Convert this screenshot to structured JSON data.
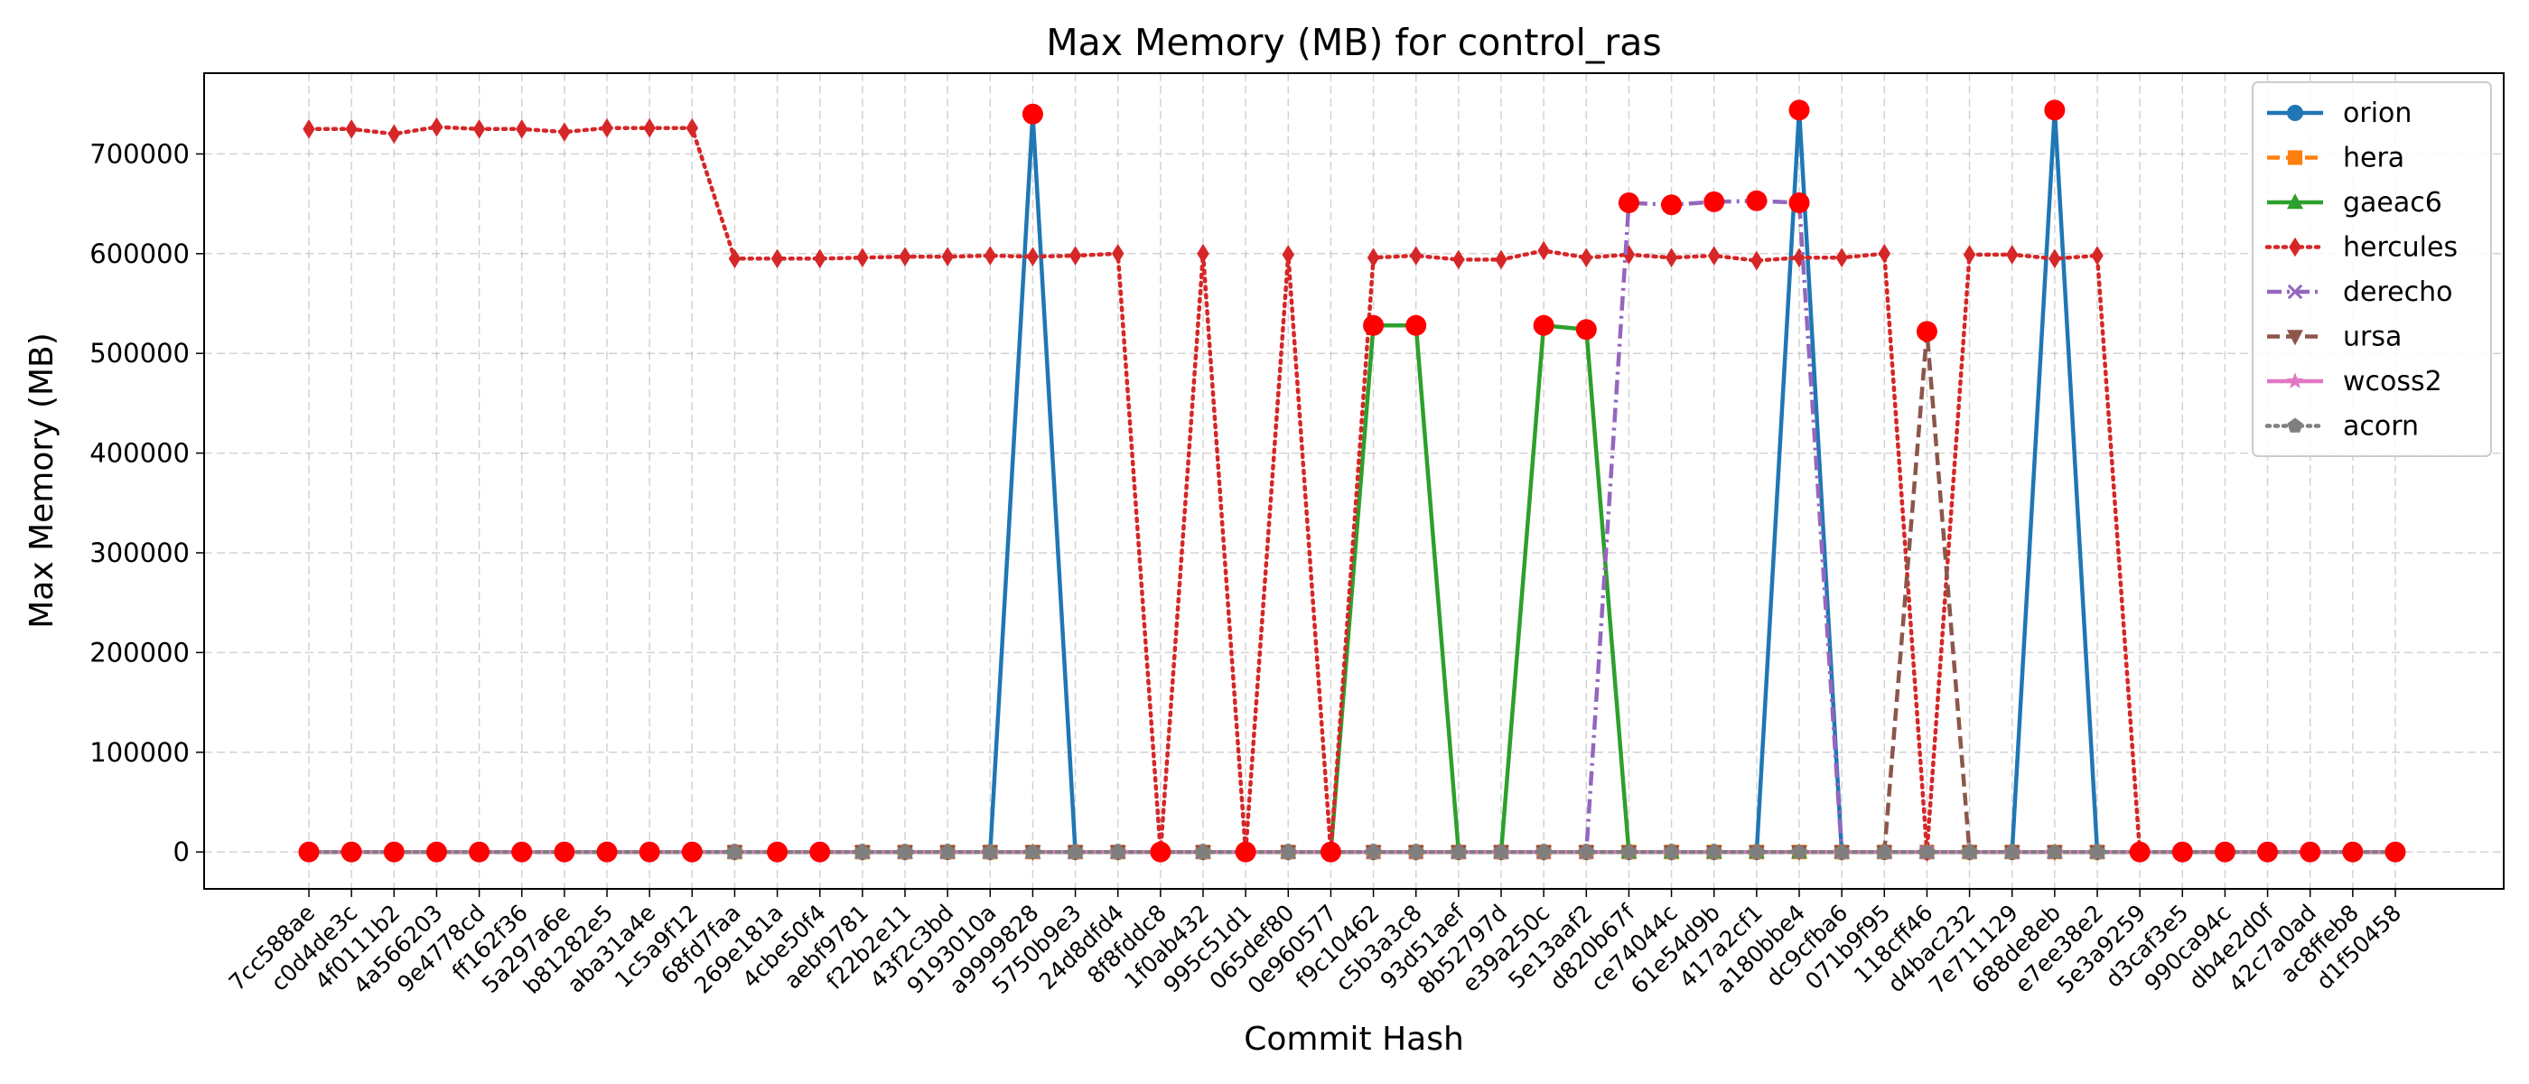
{
  "chart_data": {
    "type": "line",
    "title": "Max Memory (MB) for control_ras",
    "xlabel": "Commit Hash",
    "ylabel": "Max Memory (MB)",
    "ylim": [
      -37000,
      781000
    ],
    "yticks": [
      0,
      100000,
      200000,
      300000,
      400000,
      500000,
      600000,
      700000
    ],
    "ytick_labels": [
      "0",
      "100000",
      "200000",
      "300000",
      "400000",
      "500000",
      "600000",
      "700000"
    ],
    "grid": true,
    "legend_position": "top-right",
    "categories": [
      "7cc588ae",
      "c0d4de3c",
      "4f0111b2",
      "4a566203",
      "9e4778cd",
      "ff162f36",
      "5a297a6e",
      "b81282e5",
      "aba31a4e",
      "1c5a9f12",
      "68fd7faa",
      "269e181a",
      "4cbe50f4",
      "aebf9781",
      "f22b2e11",
      "43f2c3bd",
      "9193010a",
      "a9999828",
      "5750b9e3",
      "24d8dfd4",
      "8f8fddc8",
      "1f0ab432",
      "995c51d1",
      "065def80",
      "0e960577",
      "f9c10462",
      "c5b3a3c8",
      "93d51aef",
      "8b52797d",
      "e39a250c",
      "5e13aaf2",
      "d820b67f",
      "ce74044c",
      "61e54d9b",
      "417a2cf1",
      "a180bbe4",
      "dc9cfba6",
      "071b9f95",
      "118cff46",
      "d4bac232",
      "7e711129",
      "688de8eb",
      "e7ee38e2",
      "5e3a9259",
      "d3caf3e5",
      "990ca94c",
      "db4e2d0f",
      "42c7a0ad",
      "ac8ffeb8",
      "d1f50458"
    ],
    "series": [
      {
        "name": "orion",
        "color": "#1f77b4",
        "dash": "solid",
        "marker": "circle",
        "values": [
          0,
          0,
          0,
          0,
          0,
          0,
          0,
          0,
          0,
          0,
          0,
          0,
          0,
          0,
          0,
          0,
          0,
          740000,
          0,
          0,
          0,
          0,
          0,
          0,
          0,
          0,
          0,
          0,
          0,
          0,
          0,
          0,
          0,
          0,
          0,
          744000,
          0,
          0,
          0,
          0,
          0,
          744000,
          0,
          0,
          0,
          0,
          0,
          0,
          0,
          0
        ]
      },
      {
        "name": "hera",
        "color": "#ff7f0e",
        "dash": "dashed",
        "marker": "square",
        "values": [
          0,
          0,
          0,
          0,
          0,
          0,
          0,
          0,
          0,
          0,
          0,
          0,
          0,
          0,
          0,
          0,
          0,
          0,
          0,
          0,
          0,
          0,
          0,
          0,
          0,
          0,
          0,
          0,
          0,
          0,
          0,
          0,
          0,
          0,
          0,
          0,
          0,
          0,
          0,
          0,
          0,
          0,
          0,
          0,
          0,
          0,
          0,
          0,
          0,
          0
        ]
      },
      {
        "name": "gaeac6",
        "color": "#2ca02c",
        "dash": "solid",
        "marker": "triangle-up",
        "values": [
          0,
          0,
          0,
          0,
          0,
          0,
          0,
          0,
          0,
          0,
          0,
          0,
          0,
          0,
          0,
          0,
          0,
          0,
          0,
          0,
          0,
          0,
          0,
          0,
          0,
          528000,
          528000,
          0,
          0,
          528000,
          524000,
          0,
          0,
          0,
          0,
          0,
          0,
          0,
          0,
          0,
          0,
          0,
          0,
          0,
          0,
          0,
          0,
          0,
          0,
          0
        ]
      },
      {
        "name": "hercules",
        "color": "#d62728",
        "dash": "dotted",
        "marker": "diamond",
        "values": [
          725000,
          725000,
          720000,
          727000,
          725000,
          725000,
          722000,
          726000,
          726000,
          726000,
          595000,
          595000,
          595000,
          596000,
          597000,
          597000,
          598000,
          597000,
          598000,
          600000,
          0,
          600000,
          0,
          599000,
          0,
          596000,
          598000,
          594000,
          594000,
          603000,
          596000,
          599000,
          596000,
          598000,
          593000,
          596000,
          596000,
          600000,
          0,
          599000,
          599000,
          595000,
          598000,
          0,
          0,
          0,
          0,
          0,
          0,
          0
        ]
      },
      {
        "name": "derecho",
        "color": "#9467bd",
        "dash": "dashdot",
        "marker": "x",
        "values": [
          0,
          0,
          0,
          0,
          0,
          0,
          0,
          0,
          0,
          0,
          0,
          0,
          0,
          0,
          0,
          0,
          0,
          0,
          0,
          0,
          0,
          0,
          0,
          0,
          0,
          0,
          0,
          0,
          0,
          0,
          0,
          651000,
          649000,
          652000,
          653000,
          651000,
          0,
          0,
          0,
          0,
          0,
          0,
          0,
          0,
          0,
          0,
          0,
          0,
          0,
          0
        ]
      },
      {
        "name": "ursa",
        "color": "#8c564b",
        "dash": "dashed",
        "marker": "triangle-down",
        "values": [
          0,
          0,
          0,
          0,
          0,
          0,
          0,
          0,
          0,
          0,
          0,
          0,
          0,
          0,
          0,
          0,
          0,
          0,
          0,
          0,
          0,
          0,
          0,
          0,
          0,
          0,
          0,
          0,
          0,
          0,
          0,
          0,
          0,
          0,
          0,
          0,
          0,
          0,
          522000,
          0,
          0,
          0,
          0,
          0,
          0,
          0,
          0,
          0,
          0,
          0
        ]
      },
      {
        "name": "wcoss2",
        "color": "#e377c2",
        "dash": "solid",
        "marker": "star",
        "values": [
          0,
          0,
          0,
          0,
          0,
          0,
          0,
          0,
          0,
          0,
          0,
          0,
          0,
          0,
          0,
          0,
          0,
          0,
          0,
          0,
          0,
          0,
          0,
          0,
          0,
          0,
          0,
          0,
          0,
          0,
          0,
          0,
          0,
          0,
          0,
          0,
          0,
          0,
          0,
          0,
          0,
          0,
          0,
          0,
          0,
          0,
          0,
          0,
          0,
          0
        ]
      },
      {
        "name": "acorn",
        "color": "#7f7f7f",
        "dash": "dotted",
        "marker": "pentagon",
        "values": [
          0,
          0,
          0,
          0,
          0,
          0,
          0,
          0,
          0,
          0,
          0,
          0,
          0,
          0,
          0,
          0,
          0,
          0,
          0,
          0,
          0,
          0,
          0,
          0,
          0,
          0,
          0,
          0,
          0,
          0,
          0,
          0,
          0,
          0,
          0,
          0,
          0,
          0,
          0,
          0,
          0,
          0,
          0,
          0,
          0,
          0,
          0,
          0,
          0,
          0
        ]
      }
    ],
    "highlight_color": "#ff0000",
    "highlights": [
      {
        "category": "7cc588ae",
        "value": 0
      },
      {
        "category": "c0d4de3c",
        "value": 0
      },
      {
        "category": "4f0111b2",
        "value": 0
      },
      {
        "category": "4a566203",
        "value": 0
      },
      {
        "category": "9e4778cd",
        "value": 0
      },
      {
        "category": "ff162f36",
        "value": 0
      },
      {
        "category": "5a297a6e",
        "value": 0
      },
      {
        "category": "b81282e5",
        "value": 0
      },
      {
        "category": "aba31a4e",
        "value": 0
      },
      {
        "category": "1c5a9f12",
        "value": 0
      },
      {
        "category": "269e181a",
        "value": 0
      },
      {
        "category": "4cbe50f4",
        "value": 0
      },
      {
        "category": "a9999828",
        "value": 740000
      },
      {
        "category": "8f8fddc8",
        "value": 0
      },
      {
        "category": "995c51d1",
        "value": 0
      },
      {
        "category": "0e960577",
        "value": 0
      },
      {
        "category": "f9c10462",
        "value": 528000
      },
      {
        "category": "c5b3a3c8",
        "value": 528000
      },
      {
        "category": "e39a250c",
        "value": 528000
      },
      {
        "category": "5e13aaf2",
        "value": 524000
      },
      {
        "category": "d820b67f",
        "value": 651000
      },
      {
        "category": "ce74044c",
        "value": 649000
      },
      {
        "category": "61e54d9b",
        "value": 652000
      },
      {
        "category": "417a2cf1",
        "value": 653000
      },
      {
        "category": "a180bbe4",
        "value": 744000
      },
      {
        "category": "a180bbe4",
        "value": 651000
      },
      {
        "category": "118cff46",
        "value": 522000
      },
      {
        "category": "688de8eb",
        "value": 744000
      },
      {
        "category": "5e3a9259",
        "value": 0
      },
      {
        "category": "d3caf3e5",
        "value": 0
      },
      {
        "category": "990ca94c",
        "value": 0
      },
      {
        "category": "db4e2d0f",
        "value": 0
      },
      {
        "category": "42c7a0ad",
        "value": 0
      },
      {
        "category": "ac8ffeb8",
        "value": 0
      },
      {
        "category": "d1f50458",
        "value": 0
      }
    ]
  }
}
